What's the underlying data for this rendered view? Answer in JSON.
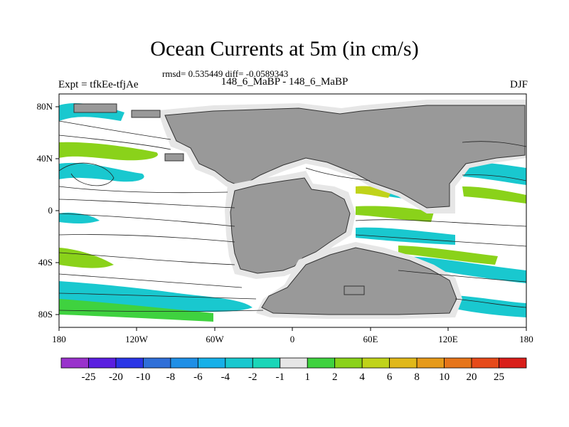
{
  "header": {
    "title": "Ocean Currents at 5m (in cm/s)",
    "stats": "rmsd= 0.535449 diff= -0.0589343",
    "experiment": "Expt = tfkEe-tfjAe",
    "period": "148_6_MaBP - 148_6_MaBP",
    "season": "DJF"
  },
  "axes": {
    "x_ticks": [
      "180",
      "120W",
      "60W",
      "0",
      "60E",
      "120E",
      "180"
    ],
    "y_ticks": [
      "80N",
      "40N",
      "0",
      "40S",
      "80S"
    ]
  },
  "colorbar": {
    "labels": [
      "-25",
      "-20",
      "-10",
      "-8",
      "-6",
      "-4",
      "-2",
      "-1",
      "1",
      "2",
      "4",
      "6",
      "8",
      "10",
      "20",
      "25"
    ],
    "colors": [
      "#9932cc",
      "#5a1fe0",
      "#2a35e6",
      "#2f6fd8",
      "#1f8fe6",
      "#17b0e8",
      "#19c8cf",
      "#1ad6b8",
      "#e6e6e6",
      "#3fd23f",
      "#8ad21a",
      "#c0d31a",
      "#e0b81a",
      "#e69a1a",
      "#e6751a",
      "#e64a1a",
      "#d91f1a"
    ]
  },
  "legend_colors": {
    "land": "#999999",
    "coast_band": "#e6e6e6",
    "positive": "#8ad21a",
    "negative": "#19c8cf"
  }
}
